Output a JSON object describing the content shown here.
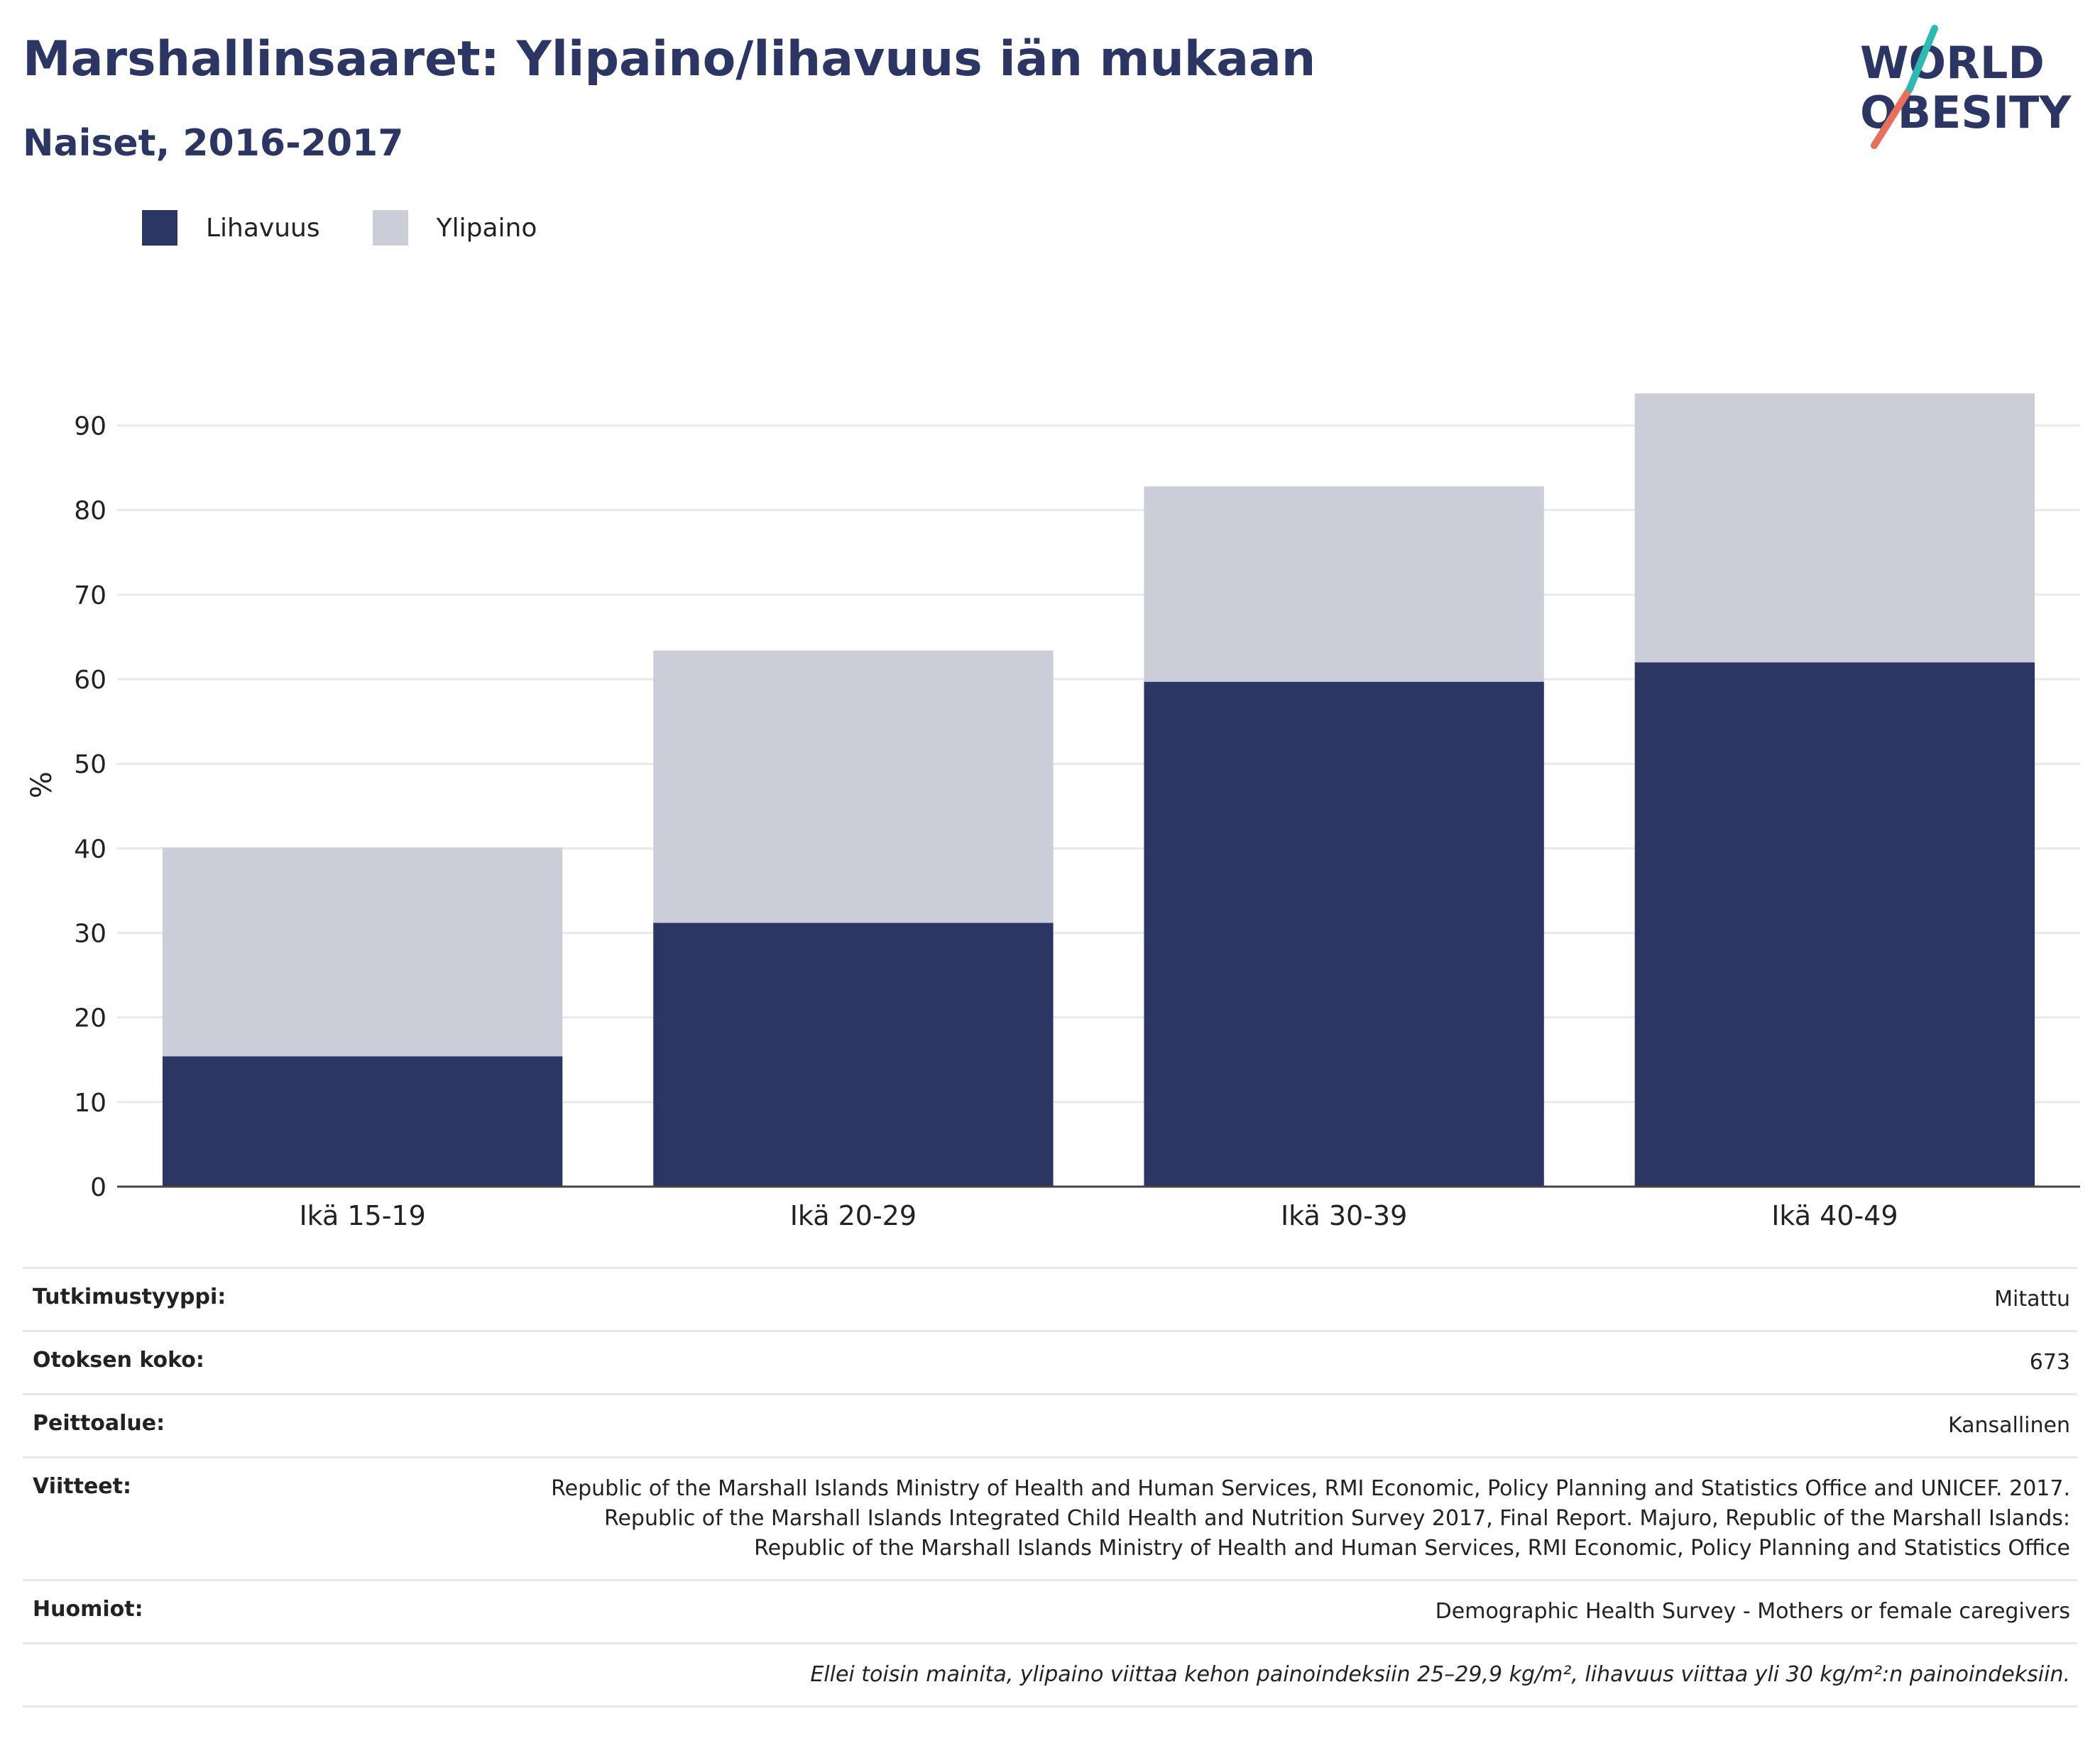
{
  "header": {
    "title": "Marshallinsaaret: Ylipaino/lihavuus iän mukaan",
    "subtitle": "Naiset, 2016-2017"
  },
  "logo": {
    "line1": "WORLD",
    "line2": "OBESITY"
  },
  "legend": [
    {
      "label": "Lihavuus",
      "color": "#2b3664"
    },
    {
      "label": "Ylipaino",
      "color": "#cbcdd8"
    }
  ],
  "chart_data": {
    "type": "bar",
    "stacked": true,
    "categories": [
      "Ikä 15-19",
      "Ikä 20-29",
      "Ikä 30-39",
      "Ikä 40-49"
    ],
    "series": [
      {
        "name": "Lihavuus",
        "values": [
          15.4,
          31.2,
          59.7,
          62.0
        ],
        "color": "#2b3664"
      },
      {
        "name": "Ylipaino",
        "values": [
          24.7,
          32.2,
          23.1,
          31.8
        ],
        "color": "#cbcdd8"
      }
    ],
    "ylabel": "%",
    "ylim": [
      0,
      95
    ],
    "yticks": [
      0,
      10,
      20,
      30,
      40,
      50,
      60,
      70,
      80,
      90
    ],
    "grid": true,
    "legend_position": "top-left"
  },
  "info": [
    {
      "label": "Tutkimustyyppi:",
      "value": "Mitattu"
    },
    {
      "label": "Otoksen koko:",
      "value": "673"
    },
    {
      "label": "Peittoalue:",
      "value": "Kansallinen"
    },
    {
      "label": "Viitteet:",
      "value": "Republic of the Marshall Islands Ministry of Health and Human Services, RMI Economic, Policy Planning and Statistics Office and UNICEF. 2017. Republic of the Marshall Islands Integrated Child Health and Nutrition Survey 2017, Final Report. Majuro, Republic of the Marshall Islands: Republic of the Marshall Islands Ministry of Health and Human Services, RMI Economic, Policy Planning and Statistics Office"
    },
    {
      "label": "Huomiot:",
      "value": "Demographic Health Survey - Mothers or female caregivers"
    }
  ],
  "footnote": "Ellei toisin mainita, ylipaino viittaa kehon painoindeksiin 25–29,9 kg/m², lihavuus viittaa yli 30 kg/m²:n painoindeksiin."
}
